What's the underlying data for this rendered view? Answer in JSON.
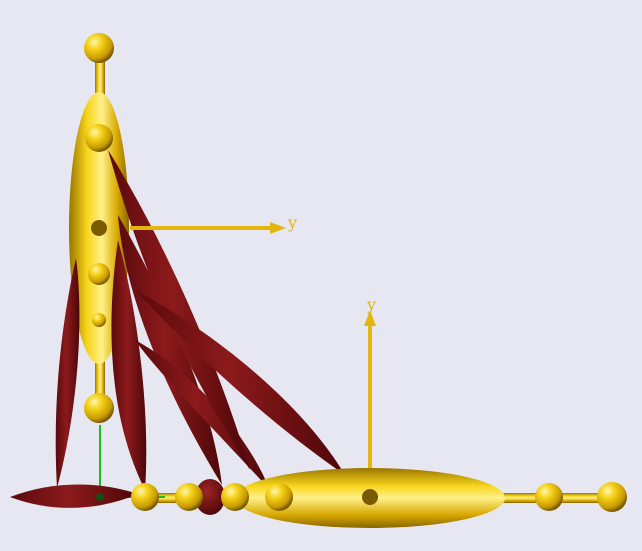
{
  "scene": {
    "background": "#e6e7f0",
    "colors": {
      "gold": "#f2cb12",
      "gold_dark": "#8a6a00",
      "lobe": "#7f1416",
      "lobe_dark": "#4a0708",
      "green_axis": "#19c019"
    },
    "axes": [
      {
        "label": "y"
      },
      {
        "label": "y"
      }
    ]
  }
}
